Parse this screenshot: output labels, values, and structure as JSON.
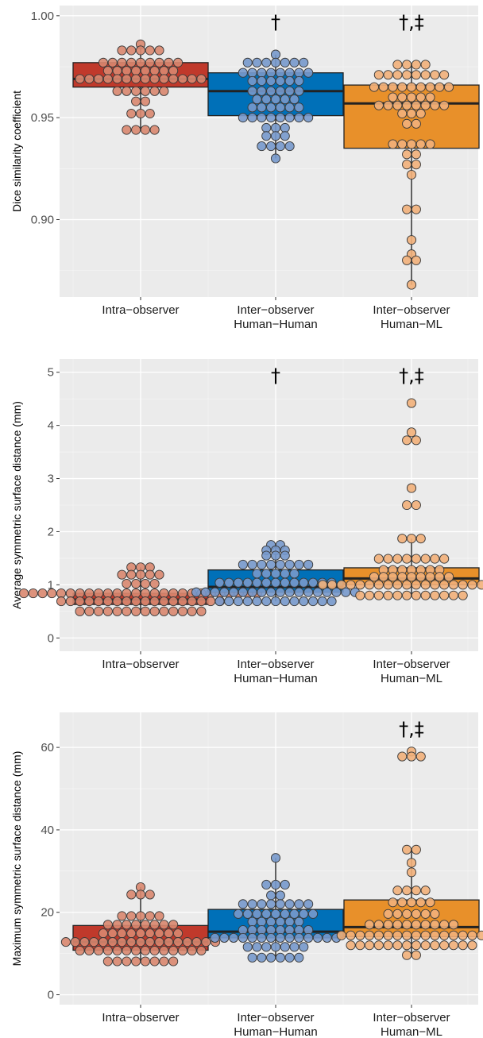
{
  "chart_data": [
    {
      "type": "boxplot",
      "ylabel": "Dice similarity coefficient",
      "ylim": [
        0.862,
        1.005
      ],
      "yticks": [
        0.9,
        0.95,
        1.0
      ],
      "ytick_labels": [
        "0.90",
        "0.95",
        "1.00"
      ],
      "grid": true,
      "categories": [
        {
          "line1": "Intra−observer",
          "line2": ""
        },
        {
          "line1": "Inter−observer",
          "line2": "Human−Human"
        },
        {
          "line1": "Inter−observer",
          "line2": "Human−ML"
        }
      ],
      "annotations": [
        "",
        "†",
        "†,‡"
      ],
      "series": [
        {
          "q1": 0.965,
          "median": 0.969,
          "q3": 0.977,
          "whisker_low": 0.944,
          "whisker_high": 0.986,
          "color": "#C0392B",
          "point_color": "#D9876F",
          "points": [
            0.986,
            0.983,
            0.983,
            0.983,
            0.983,
            0.983,
            0.977,
            0.977,
            0.977,
            0.977,
            0.977,
            0.977,
            0.977,
            0.977,
            0.977,
            0.973,
            0.973,
            0.973,
            0.973,
            0.973,
            0.973,
            0.973,
            0.973,
            0.969,
            0.969,
            0.969,
            0.969,
            0.969,
            0.969,
            0.969,
            0.969,
            0.969,
            0.969,
            0.969,
            0.969,
            0.969,
            0.969,
            0.963,
            0.963,
            0.963,
            0.963,
            0.963,
            0.963,
            0.958,
            0.958,
            0.952,
            0.952,
            0.952,
            0.944,
            0.944,
            0.944,
            0.944
          ]
        },
        {
          "q1": 0.951,
          "median": 0.963,
          "q3": 0.972,
          "whisker_low": 0.93,
          "whisker_high": 0.981,
          "color": "#0070B8",
          "point_color": "#7799CC",
          "points": [
            0.981,
            0.977,
            0.977,
            0.977,
            0.977,
            0.977,
            0.977,
            0.977,
            0.972,
            0.972,
            0.972,
            0.972,
            0.972,
            0.972,
            0.972,
            0.972,
            0.968,
            0.968,
            0.968,
            0.968,
            0.968,
            0.968,
            0.963,
            0.963,
            0.963,
            0.963,
            0.963,
            0.963,
            0.959,
            0.959,
            0.959,
            0.959,
            0.959,
            0.955,
            0.955,
            0.955,
            0.955,
            0.955,
            0.955,
            0.95,
            0.95,
            0.95,
            0.95,
            0.95,
            0.95,
            0.95,
            0.95,
            0.945,
            0.945,
            0.945,
            0.941,
            0.941,
            0.941,
            0.936,
            0.936,
            0.936,
            0.936,
            0.93
          ]
        },
        {
          "q1": 0.935,
          "median": 0.957,
          "q3": 0.966,
          "whisker_low": 0.868,
          "whisker_high": 0.976,
          "color": "#E8902A",
          "point_color": "#F2B07A",
          "points": [
            0.976,
            0.976,
            0.976,
            0.976,
            0.971,
            0.971,
            0.971,
            0.971,
            0.971,
            0.971,
            0.971,
            0.971,
            0.965,
            0.965,
            0.965,
            0.965,
            0.965,
            0.965,
            0.965,
            0.965,
            0.965,
            0.96,
            0.96,
            0.96,
            0.96,
            0.96,
            0.956,
            0.956,
            0.956,
            0.956,
            0.956,
            0.956,
            0.956,
            0.956,
            0.952,
            0.952,
            0.952,
            0.947,
            0.947,
            0.937,
            0.937,
            0.937,
            0.937,
            0.937,
            0.932,
            0.932,
            0.927,
            0.927,
            0.922,
            0.905,
            0.905,
            0.89,
            0.883,
            0.88,
            0.88,
            0.868
          ]
        }
      ]
    },
    {
      "type": "boxplot",
      "ylabel": "Average symmetric surface distance (mm)",
      "ylim": [
        -0.25,
        5.25
      ],
      "yticks": [
        0,
        1,
        2,
        3,
        4,
        5
      ],
      "ytick_labels": [
        "0",
        "1",
        "2",
        "3",
        "4",
        "5"
      ],
      "grid": true,
      "categories": [
        {
          "line1": "Intra−observer",
          "line2": ""
        },
        {
          "line1": "Inter−observer",
          "line2": "Human−Human"
        },
        {
          "line1": "Inter−observer",
          "line2": "Human−ML"
        }
      ],
      "annotations": [
        "",
        "†",
        "†,‡"
      ],
      "series": [
        {
          "q1": 0.63,
          "median": 0.72,
          "q3": 0.84,
          "whisker_low": 0.5,
          "whisker_high": 1.33,
          "color": "#C0392B",
          "point_color": "#D9876F",
          "points": [
            1.33,
            1.33,
            1.33,
            1.19,
            1.19,
            1.19,
            1.19,
            1.19,
            1.02,
            1.02,
            1.02,
            1.02,
            0.84,
            0.84,
            0.84,
            0.84,
            0.84,
            0.84,
            0.84,
            0.84,
            0.84,
            0.84,
            0.84,
            0.84,
            0.84,
            0.84,
            0.84,
            0.84,
            0.84,
            0.84,
            0.84,
            0.84,
            0.84,
            0.84,
            0.84,
            0.84,
            0.84,
            0.84,
            0.69,
            0.69,
            0.69,
            0.69,
            0.69,
            0.69,
            0.69,
            0.69,
            0.69,
            0.69,
            0.69,
            0.69,
            0.69,
            0.69,
            0.69,
            0.69,
            0.69,
            0.69,
            0.5,
            0.5,
            0.5,
            0.5,
            0.5,
            0.5,
            0.5,
            0.5,
            0.5,
            0.5,
            0.5,
            0.5,
            0.5,
            0.5
          ]
        },
        {
          "q1": 0.86,
          "median": 0.96,
          "q3": 1.28,
          "whisker_low": 0.69,
          "whisker_high": 1.75,
          "color": "#0070B8",
          "point_color": "#7799CC",
          "points": [
            1.75,
            1.75,
            1.65,
            1.65,
            1.65,
            1.55,
            1.55,
            1.55,
            1.38,
            1.38,
            1.38,
            1.38,
            1.38,
            1.38,
            1.38,
            1.38,
            1.21,
            1.21,
            1.21,
            1.21,
            1.21,
            1.04,
            1.04,
            1.04,
            1.04,
            1.04,
            1.04,
            1.04,
            1.04,
            1.04,
            1.04,
            1.04,
            1.04,
            1.04,
            0.86,
            0.86,
            0.86,
            0.86,
            0.86,
            0.86,
            0.86,
            0.86,
            0.86,
            0.86,
            0.86,
            0.86,
            0.86,
            0.86,
            0.86,
            0.86,
            0.86,
            0.86,
            0.69,
            0.69,
            0.69,
            0.69,
            0.69,
            0.69,
            0.69,
            0.69,
            0.69,
            0.69,
            0.69,
            0.69,
            0.69
          ]
        },
        {
          "q1": 1.0,
          "median": 1.12,
          "q3": 1.32,
          "whisker_low": 0.8,
          "whisker_high": 1.87,
          "color": "#E8902A",
          "point_color": "#F2B07A",
          "points": [
            4.42,
            3.87,
            3.72,
            3.72,
            2.82,
            2.5,
            2.5,
            1.87,
            1.87,
            1.87,
            1.49,
            1.49,
            1.49,
            1.49,
            1.49,
            1.49,
            1.49,
            1.49,
            1.28,
            1.28,
            1.28,
            1.28,
            1.28,
            1.28,
            1.28,
            1.15,
            1.15,
            1.15,
            1.15,
            1.15,
            1.15,
            1.15,
            1.15,
            1.15,
            1.0,
            1.0,
            1.0,
            1.0,
            1.0,
            1.0,
            1.0,
            1.0,
            1.0,
            1.0,
            1.0,
            1.0,
            1.0,
            1.0,
            1.0,
            1.0,
            1.0,
            1.0,
            1.0,
            1.0,
            0.8,
            0.8,
            0.8,
            0.8,
            0.8,
            0.8,
            0.8,
            0.8,
            0.8,
            0.8,
            0.8,
            0.8
          ]
        }
      ]
    },
    {
      "type": "boxplot",
      "ylabel": "Maximum symmetric surface distance (mm)",
      "ylim": [
        -2.4,
        68.5
      ],
      "yticks": [
        0,
        20,
        40,
        60
      ],
      "ytick_labels": [
        "0",
        "20",
        "40",
        "60"
      ],
      "grid": true,
      "categories": [
        {
          "line1": "Intra−observer",
          "line2": ""
        },
        {
          "line1": "Inter−observer",
          "line2": "Human−Human"
        },
        {
          "line1": "Inter−observer",
          "line2": "Human−ML"
        }
      ],
      "annotations": [
        "",
        "",
        "†,‡"
      ],
      "series": [
        {
          "q1": 10.8,
          "median": 12.8,
          "q3": 16.8,
          "whisker_low": 8.1,
          "whisker_high": 26.1,
          "color": "#C0392B",
          "point_color": "#D9876F",
          "points": [
            26.1,
            24.3,
            24.3,
            24.3,
            19.1,
            19.1,
            19.1,
            19.1,
            19.1,
            17.0,
            17.0,
            17.0,
            17.0,
            17.0,
            17.0,
            17.0,
            17.0,
            14.9,
            14.9,
            14.9,
            14.9,
            14.9,
            14.9,
            14.9,
            14.9,
            14.9,
            12.8,
            12.8,
            12.8,
            12.8,
            12.8,
            12.8,
            12.8,
            12.8,
            12.8,
            12.8,
            12.8,
            12.8,
            12.8,
            12.8,
            12.8,
            12.8,
            12.8,
            10.7,
            10.7,
            10.7,
            10.7,
            10.7,
            10.7,
            10.7,
            10.7,
            10.7,
            10.7,
            10.7,
            10.7,
            10.7,
            10.7,
            8.1,
            8.1,
            8.1,
            8.1,
            8.1,
            8.1,
            8.1,
            8.1
          ]
        },
        {
          "q1": 13.8,
          "median": 15.3,
          "q3": 20.7,
          "whisker_low": 9.0,
          "whisker_high": 33.2,
          "color": "#0070B8",
          "point_color": "#7799CC",
          "points": [
            33.2,
            26.7,
            26.7,
            26.7,
            24.1,
            24.1,
            22.0,
            22.0,
            22.0,
            22.0,
            22.0,
            22.0,
            22.0,
            22.0,
            19.6,
            19.6,
            19.6,
            19.6,
            19.6,
            19.6,
            19.6,
            19.6,
            19.6,
            17.7,
            17.7,
            17.7,
            17.7,
            17.7,
            17.7,
            15.7,
            15.7,
            15.7,
            15.7,
            15.7,
            15.7,
            15.7,
            15.7,
            13.8,
            13.8,
            13.8,
            13.8,
            13.8,
            13.8,
            13.8,
            13.8,
            13.8,
            13.8,
            13.8,
            13.8,
            13.8,
            13.8,
            11.6,
            11.6,
            11.6,
            11.6,
            11.6,
            11.6,
            11.6,
            9.0,
            9.0,
            9.0,
            9.0,
            9.0,
            9.0
          ]
        },
        {
          "q1": 14.1,
          "median": 16.4,
          "q3": 23.0,
          "whisker_low": 9.6,
          "whisker_high": 35.2,
          "color": "#E8902A",
          "point_color": "#F2B07A",
          "points": [
            59.0,
            57.8,
            57.8,
            57.8,
            35.2,
            35.2,
            32.0,
            29.7,
            25.3,
            25.3,
            25.3,
            25.3,
            22.4,
            22.4,
            22.4,
            22.4,
            22.4,
            19.6,
            19.6,
            19.6,
            19.6,
            19.6,
            19.6,
            17.0,
            17.0,
            17.0,
            17.0,
            17.0,
            17.0,
            17.0,
            17.0,
            17.0,
            17.0,
            14.4,
            14.4,
            14.4,
            14.4,
            14.4,
            14.4,
            14.4,
            14.4,
            14.4,
            14.4,
            14.4,
            14.4,
            14.4,
            14.4,
            14.4,
            14.4,
            12.0,
            12.0,
            12.0,
            12.0,
            12.0,
            12.0,
            12.0,
            12.0,
            12.0,
            12.0,
            12.0,
            12.0,
            12.0,
            12.0,
            9.6,
            9.6
          ]
        }
      ]
    }
  ]
}
